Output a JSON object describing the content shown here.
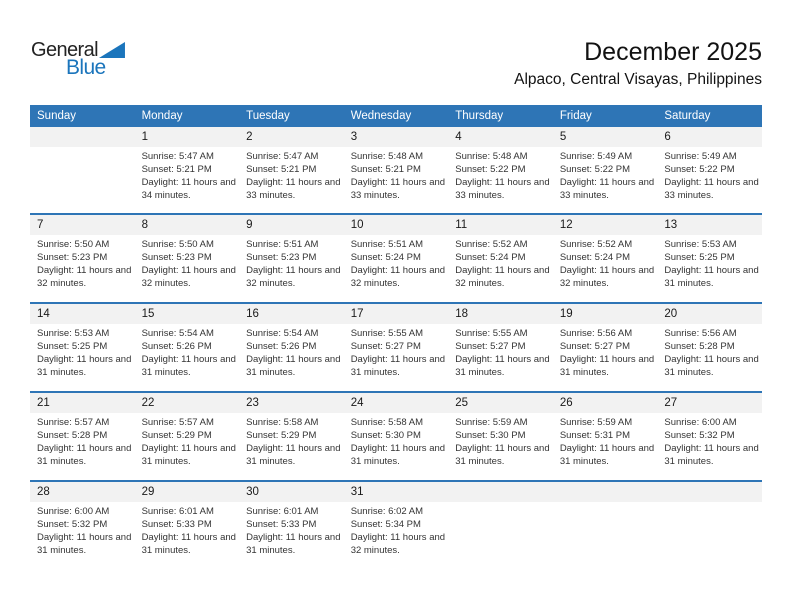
{
  "logo": {
    "part1": "General",
    "part2": "Blue"
  },
  "header": {
    "title": "December 2025",
    "subtitle": "Alpaco, Central Visayas, Philippines"
  },
  "weekday_headers": [
    "Sunday",
    "Monday",
    "Tuesday",
    "Wednesday",
    "Thursday",
    "Friday",
    "Saturday"
  ],
  "colors": {
    "header_bg": "#2E75B6",
    "divider": "#2E75B6",
    "date_strip": "#F2F2F2",
    "logo_blue": "#1B75BC"
  },
  "weeks": [
    [
      null,
      {
        "day": "1",
        "sunrise": "Sunrise: 5:47 AM",
        "sunset": "Sunset: 5:21 PM",
        "daylight": "Daylight: 11 hours and 34 minutes."
      },
      {
        "day": "2",
        "sunrise": "Sunrise: 5:47 AM",
        "sunset": "Sunset: 5:21 PM",
        "daylight": "Daylight: 11 hours and 33 minutes."
      },
      {
        "day": "3",
        "sunrise": "Sunrise: 5:48 AM",
        "sunset": "Sunset: 5:21 PM",
        "daylight": "Daylight: 11 hours and 33 minutes."
      },
      {
        "day": "4",
        "sunrise": "Sunrise: 5:48 AM",
        "sunset": "Sunset: 5:22 PM",
        "daylight": "Daylight: 11 hours and 33 minutes."
      },
      {
        "day": "5",
        "sunrise": "Sunrise: 5:49 AM",
        "sunset": "Sunset: 5:22 PM",
        "daylight": "Daylight: 11 hours and 33 minutes."
      },
      {
        "day": "6",
        "sunrise": "Sunrise: 5:49 AM",
        "sunset": "Sunset: 5:22 PM",
        "daylight": "Daylight: 11 hours and 33 minutes."
      }
    ],
    [
      {
        "day": "7",
        "sunrise": "Sunrise: 5:50 AM",
        "sunset": "Sunset: 5:23 PM",
        "daylight": "Daylight: 11 hours and 32 minutes."
      },
      {
        "day": "8",
        "sunrise": "Sunrise: 5:50 AM",
        "sunset": "Sunset: 5:23 PM",
        "daylight": "Daylight: 11 hours and 32 minutes."
      },
      {
        "day": "9",
        "sunrise": "Sunrise: 5:51 AM",
        "sunset": "Sunset: 5:23 PM",
        "daylight": "Daylight: 11 hours and 32 minutes."
      },
      {
        "day": "10",
        "sunrise": "Sunrise: 5:51 AM",
        "sunset": "Sunset: 5:24 PM",
        "daylight": "Daylight: 11 hours and 32 minutes."
      },
      {
        "day": "11",
        "sunrise": "Sunrise: 5:52 AM",
        "sunset": "Sunset: 5:24 PM",
        "daylight": "Daylight: 11 hours and 32 minutes."
      },
      {
        "day": "12",
        "sunrise": "Sunrise: 5:52 AM",
        "sunset": "Sunset: 5:24 PM",
        "daylight": "Daylight: 11 hours and 32 minutes."
      },
      {
        "day": "13",
        "sunrise": "Sunrise: 5:53 AM",
        "sunset": "Sunset: 5:25 PM",
        "daylight": "Daylight: 11 hours and 31 minutes."
      }
    ],
    [
      {
        "day": "14",
        "sunrise": "Sunrise: 5:53 AM",
        "sunset": "Sunset: 5:25 PM",
        "daylight": "Daylight: 11 hours and 31 minutes."
      },
      {
        "day": "15",
        "sunrise": "Sunrise: 5:54 AM",
        "sunset": "Sunset: 5:26 PM",
        "daylight": "Daylight: 11 hours and 31 minutes."
      },
      {
        "day": "16",
        "sunrise": "Sunrise: 5:54 AM",
        "sunset": "Sunset: 5:26 PM",
        "daylight": "Daylight: 11 hours and 31 minutes."
      },
      {
        "day": "17",
        "sunrise": "Sunrise: 5:55 AM",
        "sunset": "Sunset: 5:27 PM",
        "daylight": "Daylight: 11 hours and 31 minutes."
      },
      {
        "day": "18",
        "sunrise": "Sunrise: 5:55 AM",
        "sunset": "Sunset: 5:27 PM",
        "daylight": "Daylight: 11 hours and 31 minutes."
      },
      {
        "day": "19",
        "sunrise": "Sunrise: 5:56 AM",
        "sunset": "Sunset: 5:27 PM",
        "daylight": "Daylight: 11 hours and 31 minutes."
      },
      {
        "day": "20",
        "sunrise": "Sunrise: 5:56 AM",
        "sunset": "Sunset: 5:28 PM",
        "daylight": "Daylight: 11 hours and 31 minutes."
      }
    ],
    [
      {
        "day": "21",
        "sunrise": "Sunrise: 5:57 AM",
        "sunset": "Sunset: 5:28 PM",
        "daylight": "Daylight: 11 hours and 31 minutes."
      },
      {
        "day": "22",
        "sunrise": "Sunrise: 5:57 AM",
        "sunset": "Sunset: 5:29 PM",
        "daylight": "Daylight: 11 hours and 31 minutes."
      },
      {
        "day": "23",
        "sunrise": "Sunrise: 5:58 AM",
        "sunset": "Sunset: 5:29 PM",
        "daylight": "Daylight: 11 hours and 31 minutes."
      },
      {
        "day": "24",
        "sunrise": "Sunrise: 5:58 AM",
        "sunset": "Sunset: 5:30 PM",
        "daylight": "Daylight: 11 hours and 31 minutes."
      },
      {
        "day": "25",
        "sunrise": "Sunrise: 5:59 AM",
        "sunset": "Sunset: 5:30 PM",
        "daylight": "Daylight: 11 hours and 31 minutes."
      },
      {
        "day": "26",
        "sunrise": "Sunrise: 5:59 AM",
        "sunset": "Sunset: 5:31 PM",
        "daylight": "Daylight: 11 hours and 31 minutes."
      },
      {
        "day": "27",
        "sunrise": "Sunrise: 6:00 AM",
        "sunset": "Sunset: 5:32 PM",
        "daylight": "Daylight: 11 hours and 31 minutes."
      }
    ],
    [
      {
        "day": "28",
        "sunrise": "Sunrise: 6:00 AM",
        "sunset": "Sunset: 5:32 PM",
        "daylight": "Daylight: 11 hours and 31 minutes."
      },
      {
        "day": "29",
        "sunrise": "Sunrise: 6:01 AM",
        "sunset": "Sunset: 5:33 PM",
        "daylight": "Daylight: 11 hours and 31 minutes."
      },
      {
        "day": "30",
        "sunrise": "Sunrise: 6:01 AM",
        "sunset": "Sunset: 5:33 PM",
        "daylight": "Daylight: 11 hours and 31 minutes."
      },
      {
        "day": "31",
        "sunrise": "Sunrise: 6:02 AM",
        "sunset": "Sunset: 5:34 PM",
        "daylight": "Daylight: 11 hours and 32 minutes."
      },
      null,
      null,
      null
    ]
  ]
}
